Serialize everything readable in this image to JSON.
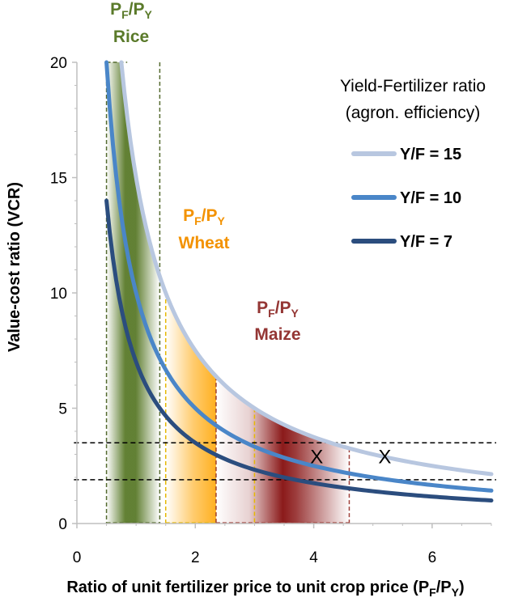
{
  "chart_data": {
    "type": "line",
    "title": "",
    "xlabel": {
      "text": "Ratio of unit fertilizer price to unit crop price (P",
      "sub1": "F",
      "mid": "/P",
      "sub2": "Y",
      "end": ")"
    },
    "ylabel": "Value-cost ratio (VCR)",
    "xlim": [
      0,
      7
    ],
    "ylim": [
      0,
      20
    ],
    "xticks": [
      0,
      2,
      4,
      6
    ],
    "yticks": [
      0,
      5,
      10,
      15,
      20
    ],
    "legend_title_line1": "Yield-Fertilizer ratio",
    "legend_title_line2": "(agron. efficiency)",
    "legend_position": "top-right",
    "series": [
      {
        "name": "Y/F = 15",
        "yield_fertilizer_ratio": 15,
        "x_start": 0.75,
        "x_end": 7,
        "color": "#b8c7e0"
      },
      {
        "name": "Y/F = 10",
        "yield_fertilizer_ratio": 10,
        "x_start": 0.5,
        "x_end": 7,
        "color": "#4a86c8"
      },
      {
        "name": "Y/F = 7",
        "yield_fertilizer_ratio": 7,
        "x_start": 0.5,
        "x_end": 7,
        "color": "#2b4d7e"
      }
    ],
    "bands": [
      {
        "crop": "Rice",
        "prefix": "P",
        "sub1": "F",
        "slash": "/P",
        "sub2": "Y",
        "x_from": 0.5,
        "x_to": 1.4,
        "color": "#5a7a2a",
        "label_color": "#5a7a2a",
        "border_color": "#556b2f",
        "fade": "center"
      },
      {
        "crop": "Wheat",
        "prefix": "P",
        "sub1": "F",
        "slash": "/P",
        "sub2": "Y",
        "x_from": 1.5,
        "x_to": 2.35,
        "color": "#ffb020",
        "label_color": "#f39200",
        "border_color": "#e6b800",
        "fade": "right"
      },
      {
        "crop": "Maize",
        "prefix": "P",
        "sub1": "F",
        "slash": "/P",
        "sub2": "Y",
        "x_from": 2.35,
        "x_to": 4.6,
        "color": "#8b1a1a",
        "label_color": "#943634",
        "border_color": "#a0403a",
        "fade": "center-right",
        "inner_divider_x": 3.0
      }
    ],
    "reference_lines_vcr": [
      3.5,
      1.9
    ],
    "markers": [
      {
        "label": "X",
        "x": 4.05,
        "y": 2.9
      },
      {
        "label": "X",
        "x": 5.2,
        "y": 2.9
      }
    ],
    "grid": false
  }
}
